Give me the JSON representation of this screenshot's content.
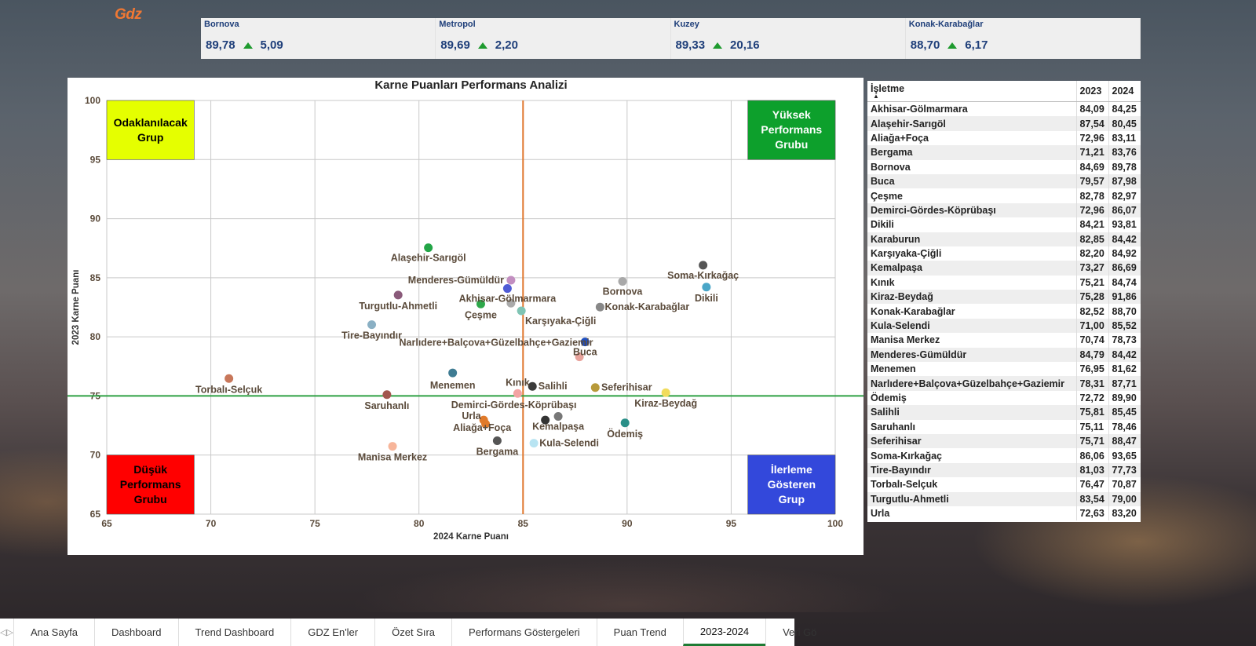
{
  "logo_text": "Gdz",
  "kpis": [
    {
      "name": "Bornova",
      "value": "89,78",
      "delta": "5,09"
    },
    {
      "name": "Metropol",
      "value": "89,69",
      "delta": "2,20"
    },
    {
      "name": "Kuzey",
      "value": "89,33",
      "delta": "20,16"
    },
    {
      "name": "Konak-Karabağlar",
      "value": "88,70",
      "delta": "6,17"
    }
  ],
  "chart_data": {
    "type": "scatter",
    "title": "Karne Puanları Performans Analizi",
    "xlabel": "2024 Karne Puanı",
    "ylabel": "2023 Karne Puanı",
    "xlim": [
      65,
      100
    ],
    "ylim": [
      65,
      100
    ],
    "xticks": [
      65,
      70,
      75,
      80,
      85,
      90,
      95,
      100
    ],
    "yticks": [
      65,
      70,
      75,
      80,
      85,
      90,
      95,
      100
    ],
    "grid": true,
    "ref_lines": {
      "x": 85,
      "y": 75,
      "x_color": "#e0782f",
      "y_color": "#2ea043"
    },
    "quadrants": [
      {
        "label": "Odaklanılacak Grup",
        "position": "top-left",
        "color": "#e5ff00",
        "text_color": "#000000"
      },
      {
        "label": "Yüksek Performans Grubu",
        "position": "top-right",
        "color": "#0da02c",
        "text_color": "#ffffff"
      },
      {
        "label": "Düşük Performans Grubu",
        "position": "bottom-left",
        "color": "#ff0000",
        "text_color": "#000000"
      },
      {
        "label": "İlerleme Gösteren Grup",
        "position": "bottom-right",
        "color": "#3348db",
        "text_color": "#ffffff"
      }
    ],
    "points": [
      {
        "name": "Akhisar-Gölmarmara",
        "x": 84.25,
        "y": 84.09,
        "color": "#4f5bd5"
      },
      {
        "name": "Alaşehir-Sarıgöl",
        "x": 80.45,
        "y": 87.54,
        "color": "#23a547"
      },
      {
        "name": "Aliağa+Foça",
        "x": 83.11,
        "y": 72.96,
        "color": "#e07a2a"
      },
      {
        "name": "Bergama",
        "x": 83.76,
        "y": 71.21,
        "color": "#555555"
      },
      {
        "name": "Bornova",
        "x": 89.78,
        "y": 84.69,
        "color": "#a8a8a8"
      },
      {
        "name": "Buca",
        "x": 87.98,
        "y": 79.57,
        "color": "#1f4fbf"
      },
      {
        "name": "Çeşme",
        "x": 82.97,
        "y": 82.78,
        "color": "#2da84a"
      },
      {
        "name": "Demirci-Gördes-Köprübaşı",
        "x": 86.07,
        "y": 72.96,
        "color": "#333333"
      },
      {
        "name": "Dikili",
        "x": 93.81,
        "y": 84.21,
        "color": "#4aa6c8"
      },
      {
        "name": "Karaburun",
        "x": 84.42,
        "y": 82.85,
        "color": "#aaaaaa"
      },
      {
        "name": "Karşıyaka-Çiğli",
        "x": 84.92,
        "y": 82.2,
        "color": "#7fc4b4"
      },
      {
        "name": "Kemalpaşa",
        "x": 86.69,
        "y": 73.27,
        "color": "#777777"
      },
      {
        "name": "Kınık",
        "x": 84.74,
        "y": 75.21,
        "color": "#f3a3a3"
      },
      {
        "name": "Kiraz-Beydağ",
        "x": 91.86,
        "y": 75.28,
        "color": "#f1dc5c"
      },
      {
        "name": "Konak-Karabağlar",
        "x": 88.7,
        "y": 82.52,
        "color": "#888888"
      },
      {
        "name": "Kula-Selendi",
        "x": 85.52,
        "y": 71.0,
        "color": "#b8e4f2"
      },
      {
        "name": "Manisa Merkez",
        "x": 78.73,
        "y": 70.74,
        "color": "#f7b59a"
      },
      {
        "name": "Menderes-Gümüldür",
        "x": 84.42,
        "y": 84.79,
        "color": "#c28ec0"
      },
      {
        "name": "Menemen",
        "x": 81.62,
        "y": 76.95,
        "color": "#3f7c93"
      },
      {
        "name": "Narlıdere+Balçova+Güzelbahçe+Gaziemir",
        "x": 87.71,
        "y": 78.31,
        "color": "#e8a39c"
      },
      {
        "name": "Ödemiş",
        "x": 89.9,
        "y": 72.72,
        "color": "#2a8f88"
      },
      {
        "name": "Salihli",
        "x": 85.45,
        "y": 75.81,
        "color": "#3a3a3a"
      },
      {
        "name": "Saruhanlı",
        "x": 78.46,
        "y": 75.11,
        "color": "#a2574e"
      },
      {
        "name": "Seferihisar",
        "x": 88.47,
        "y": 75.71,
        "color": "#b89a3a"
      },
      {
        "name": "Soma-Kırkağaç",
        "x": 93.65,
        "y": 86.06,
        "color": "#555555"
      },
      {
        "name": "Tire-Bayındır",
        "x": 77.73,
        "y": 81.03,
        "color": "#8ab0c4"
      },
      {
        "name": "Torbalı-Selçuk",
        "x": 70.87,
        "y": 76.47,
        "color": "#c8775a"
      },
      {
        "name": "Turgutlu-Ahmetli",
        "x": 79.0,
        "y": 83.54,
        "color": "#8a5a7a"
      },
      {
        "name": "Urla",
        "x": 83.2,
        "y": 72.63,
        "color": "#e07a2a"
      }
    ]
  },
  "table": {
    "headers": [
      "İşletme",
      "2023",
      "2024"
    ],
    "rows": [
      [
        "Akhisar-Gölmarmara",
        "84,09",
        "84,25"
      ],
      [
        "Alaşehir-Sarıgöl",
        "87,54",
        "80,45"
      ],
      [
        "Aliağa+Foça",
        "72,96",
        "83,11"
      ],
      [
        "Bergama",
        "71,21",
        "83,76"
      ],
      [
        "Bornova",
        "84,69",
        "89,78"
      ],
      [
        "Buca",
        "79,57",
        "87,98"
      ],
      [
        "Çeşme",
        "82,78",
        "82,97"
      ],
      [
        "Demirci-Gördes-Köprübaşı",
        "72,96",
        "86,07"
      ],
      [
        "Dikili",
        "84,21",
        "93,81"
      ],
      [
        "Karaburun",
        "82,85",
        "84,42"
      ],
      [
        "Karşıyaka-Çiğli",
        "82,20",
        "84,92"
      ],
      [
        "Kemalpaşa",
        "73,27",
        "86,69"
      ],
      [
        "Kınık",
        "75,21",
        "84,74"
      ],
      [
        "Kiraz-Beydağ",
        "75,28",
        "91,86"
      ],
      [
        "Konak-Karabağlar",
        "82,52",
        "88,70"
      ],
      [
        "Kula-Selendi",
        "71,00",
        "85,52"
      ],
      [
        "Manisa Merkez",
        "70,74",
        "78,73"
      ],
      [
        "Menderes-Gümüldür",
        "84,79",
        "84,42"
      ],
      [
        "Menemen",
        "76,95",
        "81,62"
      ],
      [
        "Narlıdere+Balçova+Güzelbahçe+Gaziemir",
        "78,31",
        "87,71"
      ],
      [
        "Ödemiş",
        "72,72",
        "89,90"
      ],
      [
        "Salihli",
        "75,81",
        "85,45"
      ],
      [
        "Saruhanlı",
        "75,11",
        "78,46"
      ],
      [
        "Seferihisar",
        "75,71",
        "88,47"
      ],
      [
        "Soma-Kırkağaç",
        "86,06",
        "93,65"
      ],
      [
        "Tire-Bayındır",
        "81,03",
        "77,73"
      ],
      [
        "Torbalı-Selçuk",
        "76,47",
        "70,87"
      ],
      [
        "Turgutlu-Ahmetli",
        "83,54",
        "79,00"
      ],
      [
        "Urla",
        "72,63",
        "83,20"
      ]
    ]
  },
  "tabs": [
    {
      "label": "Ana Sayfa",
      "active": false
    },
    {
      "label": "Dashboard",
      "active": false
    },
    {
      "label": "Trend Dashboard",
      "active": false
    },
    {
      "label": "GDZ En'ler",
      "active": false
    },
    {
      "label": "Özet Sıra",
      "active": false
    },
    {
      "label": "Performans Göstergeleri",
      "active": false
    },
    {
      "label": "Puan Trend",
      "active": false
    },
    {
      "label": "2023-2024",
      "active": true
    },
    {
      "label": "Veri Gö",
      "active": false
    }
  ],
  "icons": {
    "tab_prev": "triangle-left-icon",
    "tab_next": "triangle-right-icon",
    "kpi_up": "up-triangle-icon"
  }
}
